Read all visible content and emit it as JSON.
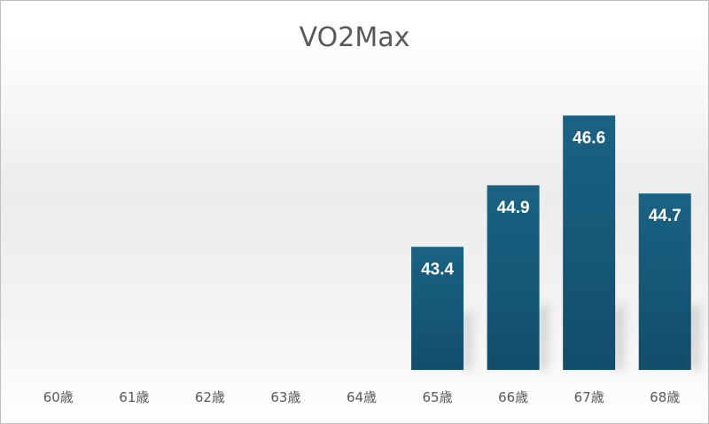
{
  "chart_data": {
    "type": "bar",
    "title": "VO2Max",
    "xlabel": "",
    "ylabel": "",
    "categories": [
      "60歳",
      "61歳",
      "62歳",
      "63歳",
      "64歳",
      "65歳",
      "66歳",
      "67歳",
      "68歳"
    ],
    "values": [
      null,
      null,
      null,
      null,
      null,
      43.4,
      44.9,
      46.6,
      44.7
    ],
    "ylim": [
      40.4,
      47.6
    ],
    "grid": false,
    "legend": "none",
    "bar_color": "#14597a",
    "bar_color_light": "#1a6284",
    "bar_color_dark": "#124d6b",
    "label_color": "#ffffff",
    "tick_color": "#595959"
  }
}
